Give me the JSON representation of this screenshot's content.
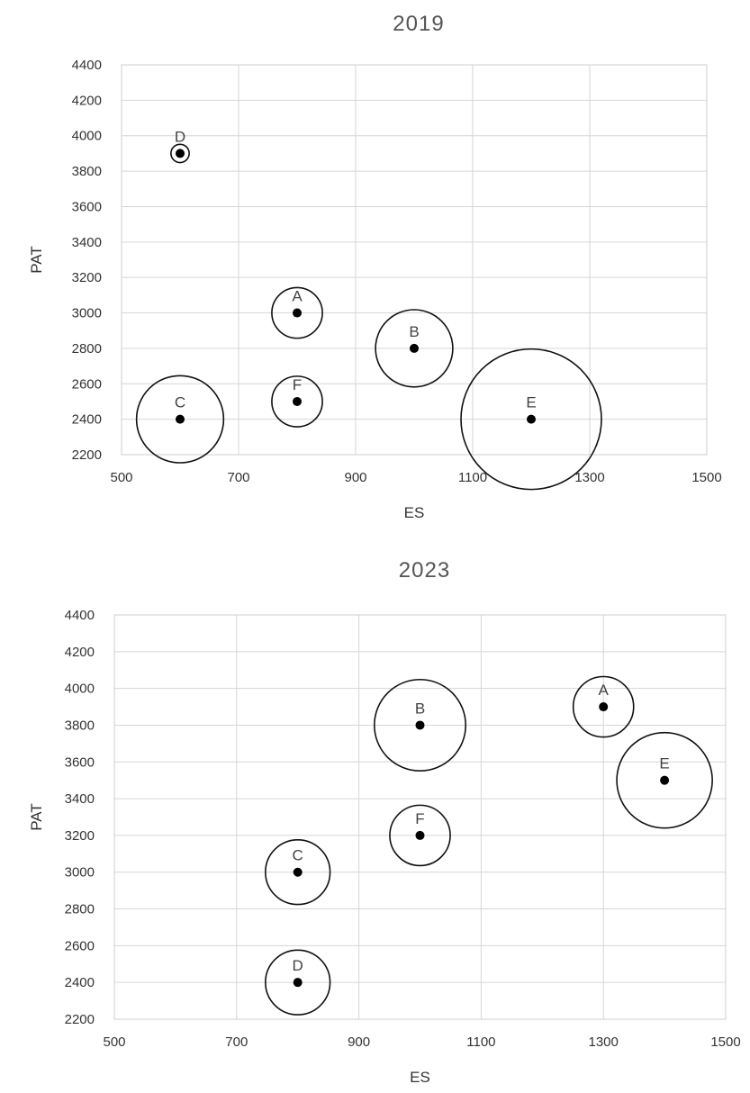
{
  "chart_data": [
    {
      "type": "bubble",
      "title": "2019",
      "xlabel": "ES",
      "ylabel": "PAT",
      "xlim": [
        500,
        1500
      ],
      "ylim": [
        2200,
        4400
      ],
      "xticks": [
        500,
        700,
        900,
        1100,
        1300,
        1500
      ],
      "yticks": [
        2200,
        2400,
        2600,
        2800,
        3000,
        3200,
        3400,
        3600,
        3800,
        4000,
        4200,
        4400
      ],
      "grid": true,
      "points": [
        {
          "label": "D",
          "x": 600,
          "y": 3900,
          "size": 0.13
        },
        {
          "label": "A",
          "x": 800,
          "y": 3000,
          "size": 0.36
        },
        {
          "label": "B",
          "x": 1000,
          "y": 2800,
          "size": 0.55
        },
        {
          "label": "F",
          "x": 800,
          "y": 2500,
          "size": 0.36
        },
        {
          "label": "C",
          "x": 600,
          "y": 2400,
          "size": 0.62
        },
        {
          "label": "E",
          "x": 1200,
          "y": 2400,
          "size": 1.0
        }
      ]
    },
    {
      "type": "bubble",
      "title": "2023",
      "xlabel": "ES",
      "ylabel": "PAT",
      "xlim": [
        500,
        1500
      ],
      "ylim": [
        2200,
        4400
      ],
      "xticks": [
        500,
        700,
        900,
        1100,
        1300,
        1500
      ],
      "yticks": [
        2200,
        2400,
        2600,
        2800,
        3000,
        3200,
        3400,
        3600,
        3800,
        4000,
        4200,
        4400
      ],
      "grid": true,
      "points": [
        {
          "label": "B",
          "x": 1000,
          "y": 3800,
          "size": 0.65
        },
        {
          "label": "A",
          "x": 1300,
          "y": 3900,
          "size": 0.43
        },
        {
          "label": "E",
          "x": 1400,
          "y": 3500,
          "size": 0.68
        },
        {
          "label": "F",
          "x": 1000,
          "y": 3200,
          "size": 0.43
        },
        {
          "label": "C",
          "x": 800,
          "y": 3000,
          "size": 0.46
        },
        {
          "label": "D",
          "x": 800,
          "y": 2400,
          "size": 0.46
        }
      ]
    }
  ]
}
